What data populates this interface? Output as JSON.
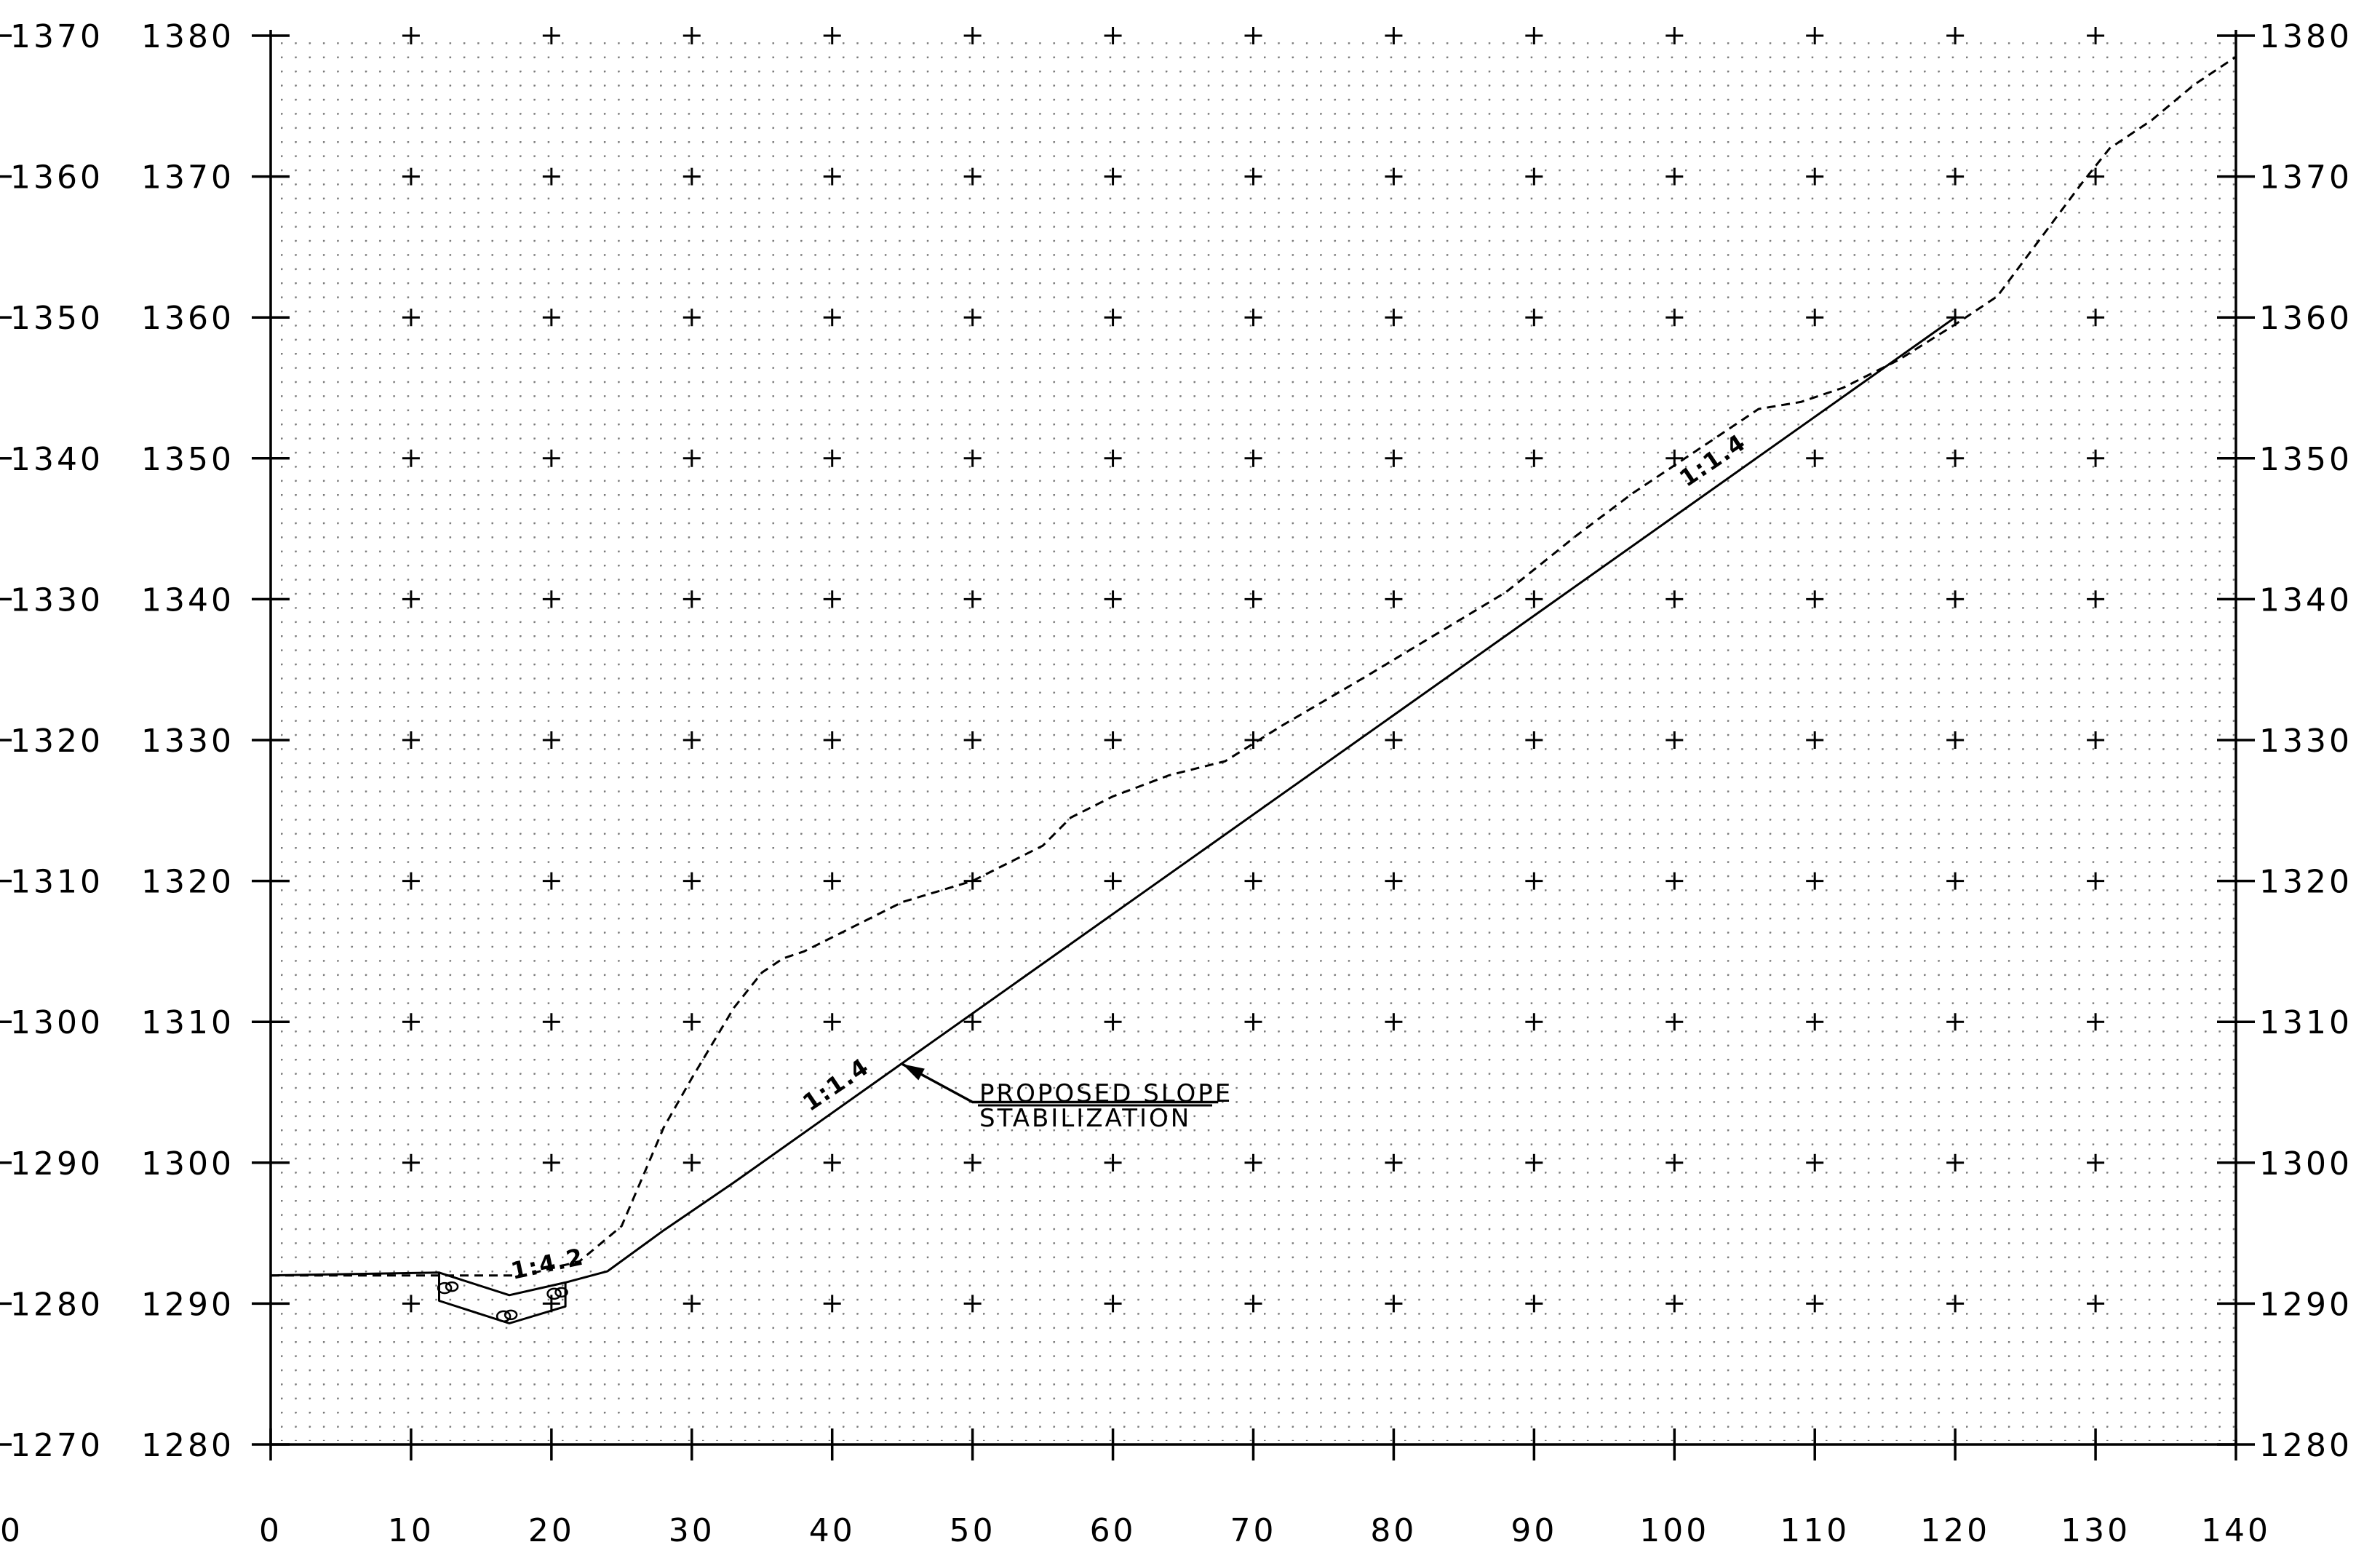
{
  "x_axis": {
    "ticks": [
      0,
      10,
      20,
      30,
      40,
      50,
      60,
      70,
      80,
      90,
      100,
      110,
      120,
      130,
      140
    ],
    "tick_labels": [
      "0",
      "10",
      "20",
      "30",
      "40",
      "50",
      "60",
      "70",
      "80",
      "90",
      "100",
      "110",
      "120",
      "130",
      "140"
    ],
    "range": [
      0,
      140
    ]
  },
  "left_offset_axis": {
    "labels": [
      "1370",
      "1360",
      "1350",
      "1340",
      "1330",
      "1320",
      "1310",
      "1300",
      "1290",
      "1280",
      "1270"
    ],
    "left_corner_label": "0"
  },
  "left_elev_axis": {
    "labels": [
      "1380",
      "1370",
      "1360",
      "1350",
      "1340",
      "1330",
      "1320",
      "1310",
      "1300",
      "1290",
      "1280"
    ]
  },
  "right_elev_axis": {
    "labels": [
      "1380",
      "1370",
      "1360",
      "1350",
      "1340",
      "1330",
      "1320",
      "1310",
      "1300",
      "1290",
      "1280"
    ]
  },
  "y_range": [
    1280,
    1380
  ],
  "annotations": {
    "callout_line1": "PROPOSED SLOPE",
    "callout_line2": "STABILIZATION",
    "slope_upper": "1:1.4",
    "slope_mid": "1:1.4",
    "slope_ditch": "1:4.2"
  },
  "chart_data": {
    "type": "line",
    "grid": "dotted",
    "xlim": [
      0,
      140
    ],
    "ylim": [
      1280,
      1380
    ],
    "series": [
      {
        "style": "dashed",
        "x": [
          0,
          12,
          18,
          22,
          25,
          26.5,
          28,
          30,
          33,
          35,
          36.5,
          38,
          41,
          45,
          50,
          55,
          57,
          60,
          64,
          68,
          72,
          78,
          83,
          88,
          93,
          97,
          100,
          103,
          106,
          109,
          112,
          116,
          120,
          123,
          126,
          129,
          131,
          134,
          137,
          140
        ],
        "y": [
          1292,
          1292,
          1292,
          1293,
          1295.5,
          1299,
          1302.5,
          1306,
          1311,
          1313.5,
          1314.5,
          1315,
          1316.5,
          1318.5,
          1320,
          1322.5,
          1324.5,
          1326,
          1327.5,
          1328.5,
          1331,
          1334.5,
          1337.5,
          1340.5,
          1344.5,
          1347.5,
          1349.5,
          1351.5,
          1353.5,
          1354,
          1355,
          1357,
          1359.5,
          1361.5,
          1365.5,
          1369.5,
          1372,
          1374,
          1376.5,
          1378.5
        ]
      },
      {
        "style": "solid",
        "x": [
          0,
          12,
          17,
          21,
          24,
          28,
          33,
          120
        ],
        "y": [
          1292,
          1292.2,
          1290.6,
          1291.5,
          1292.3,
          1295.2,
          1298.6,
          1360
        ]
      }
    ],
    "ditch": {
      "x": [
        12,
        12,
        17,
        21,
        21
      ],
      "y": [
        1292.2,
        1290.2,
        1288.6,
        1289.8,
        1291.5
      ]
    },
    "callout_arrow": {
      "tip": [
        45,
        1307
      ],
      "elbow": [
        50,
        1304.3
      ],
      "end": [
        67.5,
        1304.3
      ]
    }
  }
}
